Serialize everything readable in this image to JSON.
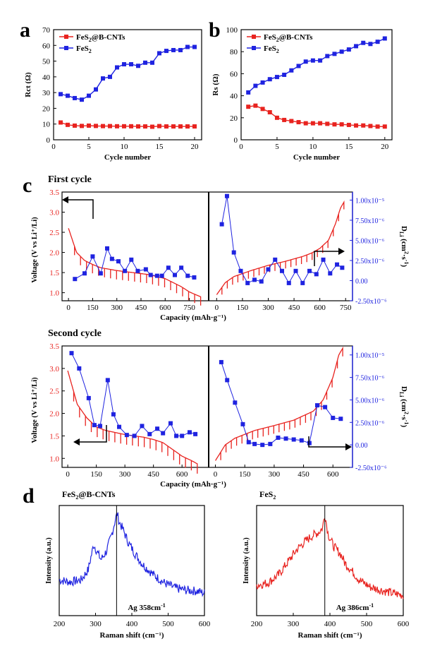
{
  "colors": {
    "red": "#e8231f",
    "blue": "#1f23e0",
    "black": "#000000"
  },
  "chart_data": [
    {
      "panel": "a",
      "type": "line",
      "xlabel": "Cycle number",
      "ylabel": "Rct (Ω)",
      "xlim": [
        0,
        21
      ],
      "ylim": [
        0,
        70
      ],
      "xticks": [
        0,
        5,
        10,
        15,
        20
      ],
      "yticks": [
        0,
        10,
        20,
        30,
        40,
        50,
        60,
        70
      ],
      "legend": "top-left",
      "x": [
        1,
        2,
        3,
        4,
        5,
        6,
        7,
        8,
        9,
        10,
        11,
        12,
        13,
        14,
        15,
        16,
        17,
        18,
        19,
        20
      ],
      "series": [
        {
          "name": "FeS2@B-CNTs",
          "color": "#e8231f",
          "marker": "square",
          "values": [
            11,
            9.5,
            9,
            8.8,
            9,
            8.8,
            8.7,
            8.7,
            8.6,
            8.6,
            8.6,
            8.5,
            8.5,
            8.3,
            8.7,
            8.5,
            8.5,
            8.5,
            8.5,
            8.5
          ]
        },
        {
          "name": "FeS2",
          "color": "#1f23e0",
          "marker": "square",
          "values": [
            29,
            28,
            26.5,
            25.5,
            28,
            32,
            39,
            40,
            46,
            48,
            48,
            47,
            49,
            49,
            55,
            56.5,
            57,
            57,
            59,
            59
          ]
        }
      ]
    },
    {
      "panel": "b",
      "type": "line",
      "xlabel": "Cycle number",
      "ylabel": "Rs (Ω)",
      "xlim": [
        0,
        21
      ],
      "ylim": [
        0,
        100
      ],
      "xticks": [
        0,
        5,
        10,
        15,
        20
      ],
      "yticks": [
        0,
        20,
        40,
        60,
        80,
        100
      ],
      "legend": "top-left",
      "x": [
        1,
        2,
        3,
        4,
        5,
        6,
        7,
        8,
        9,
        10,
        11,
        12,
        13,
        14,
        15,
        16,
        17,
        18,
        19,
        20
      ],
      "series": [
        {
          "name": "FeS2@B-CNTs",
          "color": "#e8231f",
          "marker": "square",
          "values": [
            30,
            31,
            28,
            25,
            20,
            18,
            17,
            16,
            15,
            15,
            15,
            14.5,
            14,
            14,
            13.5,
            13,
            13,
            12.5,
            12,
            12
          ]
        },
        {
          "name": "FeS2",
          "color": "#1f23e0",
          "marker": "square",
          "values": [
            43,
            49,
            52,
            55,
            57,
            59,
            63,
            67,
            71,
            72,
            72,
            76,
            78,
            80,
            82,
            85,
            88,
            87,
            89,
            92
          ]
        }
      ]
    },
    {
      "panel": "c",
      "type": "line",
      "title": "First cycle",
      "xlabel": "Capacity  (mAh·g⁻¹)",
      "ylabel": "Voltage (V vs Li⁺/Li)",
      "ylabel_right": "D_Li (cm²·s⁻¹)",
      "ylim": [
        0.8,
        3.5
      ],
      "yticks": [
        1.0,
        1.5,
        2.0,
        2.5,
        3.0,
        3.5
      ],
      "ylim_right": [
        -2.5e-06,
        1.1e-05
      ],
      "yticks_right": [
        "1.00x10⁻⁵",
        "7.50x10⁻⁶",
        "5.00x10⁻⁶",
        "2.50x10⁻⁶",
        "0.00",
        "-2.50x10⁻⁶"
      ],
      "yticks_right_values": [
        1e-05,
        7.5e-06,
        5e-06,
        2.5e-06,
        0,
        -2.5e-06
      ],
      "discharge": {
        "xticks": [
          0,
          150,
          300,
          450,
          600,
          750
        ],
        "xlim": [
          -40,
          870
        ],
        "voltage_curve": {
          "x": [
            0,
            50,
            100,
            150,
            200,
            300,
            400,
            500,
            550,
            600,
            650,
            700,
            750,
            790,
            820
          ],
          "y": [
            2.6,
            2.0,
            1.8,
            1.7,
            1.62,
            1.55,
            1.5,
            1.45,
            1.4,
            1.35,
            1.25,
            1.15,
            1.02,
            0.95,
            0.9
          ]
        },
        "diffusivity": {
          "x": [
            40,
            100,
            150,
            200,
            240,
            270,
            310,
            350,
            390,
            430,
            480,
            510,
            550,
            580,
            620,
            660,
            700,
            740,
            780
          ],
          "y": [
            2e-07,
            9e-07,
            3e-06,
            9e-07,
            4e-06,
            2.7e-06,
            2.4e-06,
            1.2e-06,
            2.6e-06,
            1.2e-06,
            1.4e-06,
            7e-07,
            6e-07,
            6e-07,
            1.6e-06,
            7e-07,
            1.6e-06,
            6e-07,
            4e-07
          ]
        }
      },
      "charge": {
        "xticks": [
          0,
          150,
          300,
          450,
          600,
          750
        ],
        "xlim": [
          -30,
          790
        ],
        "voltage_curve": {
          "x": [
            0,
            50,
            100,
            200,
            300,
            400,
            500,
            550,
            600,
            650,
            690,
            720,
            740
          ],
          "y": [
            0.95,
            1.25,
            1.4,
            1.55,
            1.68,
            1.78,
            1.9,
            1.98,
            2.1,
            2.3,
            2.7,
            3.1,
            3.25
          ]
        },
        "diffusivity": {
          "x": [
            30,
            60,
            100,
            140,
            180,
            220,
            260,
            300,
            340,
            380,
            420,
            460,
            500,
            540,
            580,
            620,
            660,
            700,
            730
          ],
          "y": [
            7e-06,
            1.05e-05,
            3.5e-06,
            1.2e-06,
            -3e-07,
            1e-07,
            -1e-07,
            1.4e-06,
            2.6e-06,
            1.2e-06,
            -3e-07,
            1.2e-06,
            -3e-07,
            1.2e-06,
            8e-07,
            2.6e-06,
            9e-07,
            2e-06,
            1.6e-06
          ]
        }
      }
    },
    {
      "panel": "c",
      "type": "line",
      "title": "Second cycle",
      "xlabel": "Capacity  (mAh·g⁻¹)",
      "ylabel": "Voltage (V vs Li⁺/Li)",
      "ylabel_right": "D_Li (cm²·s⁻¹)",
      "ylim": [
        0.8,
        3.5
      ],
      "yticks": [
        1.0,
        1.5,
        2.0,
        2.5,
        3.0,
        3.5
      ],
      "ylim_right": [
        -2.5e-06,
        1.1e-05
      ],
      "yticks_right": [
        "1.00x10⁻⁵",
        "7.50x10⁻⁶",
        "5.00x10⁻⁶",
        "2.50x10⁻⁶",
        "0.00",
        "-2.50x10⁻⁶"
      ],
      "yticks_right_values": [
        1e-05,
        7.5e-06,
        5e-06,
        2.5e-06,
        0,
        -2.5e-06
      ],
      "discharge": {
        "xticks": [
          0,
          150,
          300,
          450,
          600
        ],
        "xlim": [
          -30,
          740
        ],
        "voltage_curve": {
          "x": [
            0,
            50,
            100,
            150,
            200,
            300,
            400,
            450,
            500,
            550,
            600,
            650,
            680
          ],
          "y": [
            2.95,
            2.2,
            1.9,
            1.7,
            1.62,
            1.53,
            1.47,
            1.42,
            1.35,
            1.2,
            1.05,
            0.95,
            0.88
          ]
        },
        "diffusivity": {
          "x": [
            20,
            60,
            110,
            140,
            170,
            210,
            240,
            270,
            310,
            350,
            390,
            430,
            470,
            500,
            540,
            570,
            600,
            640,
            670
          ],
          "y": [
            1.02e-05,
            8.5e-06,
            5.2e-06,
            2.2e-06,
            2.1e-06,
            7.2e-06,
            3.4e-06,
            2e-06,
            1.1e-06,
            1e-06,
            2.1e-06,
            1.2e-06,
            1.8e-06,
            1.3e-06,
            2.4e-06,
            1e-06,
            1e-06,
            1.4e-06,
            1.2e-06
          ]
        }
      },
      "charge": {
        "xticks": [
          0,
          150,
          300,
          450,
          600
        ],
        "xlim": [
          -20,
          700
        ],
        "voltage_curve": {
          "x": [
            0,
            50,
            100,
            200,
            300,
            400,
            500,
            550,
            600,
            630,
            650
          ],
          "y": [
            0.95,
            1.3,
            1.45,
            1.62,
            1.73,
            1.85,
            2.05,
            2.3,
            2.8,
            3.3,
            3.45
          ]
        },
        "diffusivity": {
          "x": [
            30,
            60,
            100,
            140,
            170,
            200,
            240,
            280,
            320,
            360,
            400,
            440,
            480,
            520,
            560,
            600,
            640
          ],
          "y": [
            9.2e-06,
            7.2e-06,
            4.7e-06,
            2.3e-06,
            3e-07,
            1e-07,
            0.0,
            1e-07,
            8e-07,
            7e-07,
            6e-07,
            5e-07,
            2e-07,
            4.4e-06,
            4.2e-06,
            3e-06,
            2.9e-06
          ]
        }
      }
    },
    {
      "panel": "d",
      "type": "line",
      "title": "FeS₂@B-CNTs",
      "xlabel": "Raman shift (cm⁻¹)",
      "ylabel": "Intensity (a.u.)",
      "xlim": [
        200,
        600
      ],
      "xticks": [
        200,
        300,
        400,
        500,
        600
      ],
      "annotation": "Ag 358cm⁻¹",
      "peak_line_x": 358,
      "series": [
        {
          "name": "FeS2@B-CNTs",
          "color": "#1f23e0",
          "x": [
            200,
            230,
            260,
            280,
            295,
            305,
            315,
            330,
            345,
            355,
            360,
            365,
            375,
            390,
            410,
            430,
            460,
            490,
            520,
            550,
            580,
            600
          ],
          "y": [
            0.35,
            0.33,
            0.35,
            0.45,
            0.7,
            0.62,
            0.55,
            0.63,
            0.8,
            0.95,
            1.0,
            0.92,
            0.85,
            0.72,
            0.6,
            0.5,
            0.4,
            0.32,
            0.27,
            0.25,
            0.24,
            0.22
          ]
        }
      ]
    },
    {
      "panel": "d",
      "type": "line",
      "title": "FeS₂",
      "xlabel": "Raman shift (cm⁻¹)",
      "ylabel": "Intensity (a.u.)",
      "xlim": [
        200,
        600
      ],
      "xticks": [
        200,
        300,
        400,
        500,
        600
      ],
      "annotation": "Ag 386cm⁻¹",
      "peak_line_x": 386,
      "series": [
        {
          "name": "FeS2",
          "color": "#e8231f",
          "x": [
            200,
            230,
            260,
            290,
            310,
            330,
            350,
            370,
            380,
            386,
            395,
            410,
            430,
            440,
            455,
            480,
            510,
            540,
            570,
            600
          ],
          "y": [
            0.3,
            0.32,
            0.4,
            0.55,
            0.65,
            0.72,
            0.78,
            0.82,
            0.86,
            1.0,
            0.8,
            0.68,
            0.6,
            0.52,
            0.46,
            0.35,
            0.28,
            0.25,
            0.22,
            0.2
          ]
        }
      ]
    }
  ],
  "labels": {
    "panel_a": "a",
    "panel_b": "b",
    "panel_c": "c",
    "panel_d": "d",
    "first_cycle": "First cycle",
    "second_cycle": "Second cycle",
    "legend_fes2_bcnt": "FeS2@B-CNTs",
    "legend_fes2": "FeS2",
    "title_d1": "FeS2@B-CNTs",
    "title_d2": "FeS2",
    "ann_d1": "Ag 358cm-1",
    "ann_d2": "Ag 386cm-1"
  }
}
